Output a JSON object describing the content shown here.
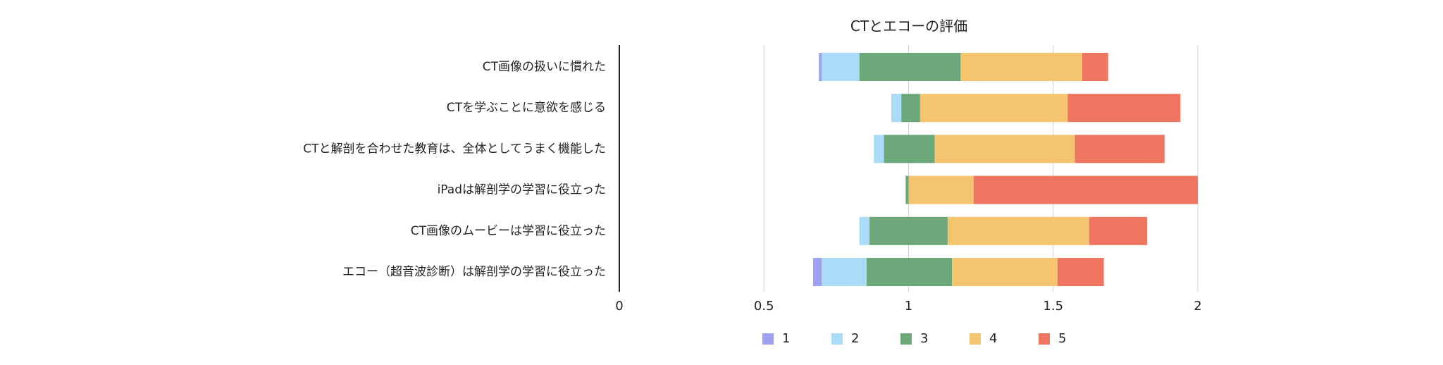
{
  "chart_data": {
    "type": "bar",
    "orientation": "horizontal",
    "stacked": true,
    "title": "CTとエコーの評価",
    "categories": [
      "CT画像の扱いに慣れた",
      "CTを学ぶことに意欲を感じる",
      "CTと解剖を合わせた教育は、全体としてうまく機能した",
      "iPadは解剖学の学習に役立った",
      "CT画像のムービーは学習に役立った",
      "エコー（超音波診断）は解剖学の学習に役立った"
    ],
    "offsets": [
      0.69,
      0.94,
      0.88,
      0.99,
      0.83,
      0.67
    ],
    "series": [
      {
        "name": "1",
        "color": "#a0a0f0",
        "values": [
          0.01,
          0.0,
          0.0,
          0.0,
          0.0,
          0.03
        ]
      },
      {
        "name": "2",
        "color": "#aadcf8",
        "values": [
          0.13,
          0.035,
          0.035,
          0.0,
          0.035,
          0.155
        ]
      },
      {
        "name": "3",
        "color": "#6da87a",
        "values": [
          0.35,
          0.065,
          0.175,
          0.01,
          0.27,
          0.295
        ]
      },
      {
        "name": "4",
        "color": "#f5c46e",
        "values": [
          0.42,
          0.51,
          0.485,
          0.225,
          0.49,
          0.365
        ]
      },
      {
        "name": "5",
        "color": "#ee7560",
        "values": [
          0.09,
          0.39,
          0.31,
          0.775,
          0.2,
          0.16
        ]
      }
    ],
    "xlim": [
      0,
      2
    ],
    "xticks": [
      "0",
      "0.5",
      "1",
      "1.5",
      "2"
    ],
    "grid": true,
    "legend_position": "bottom-center"
  }
}
